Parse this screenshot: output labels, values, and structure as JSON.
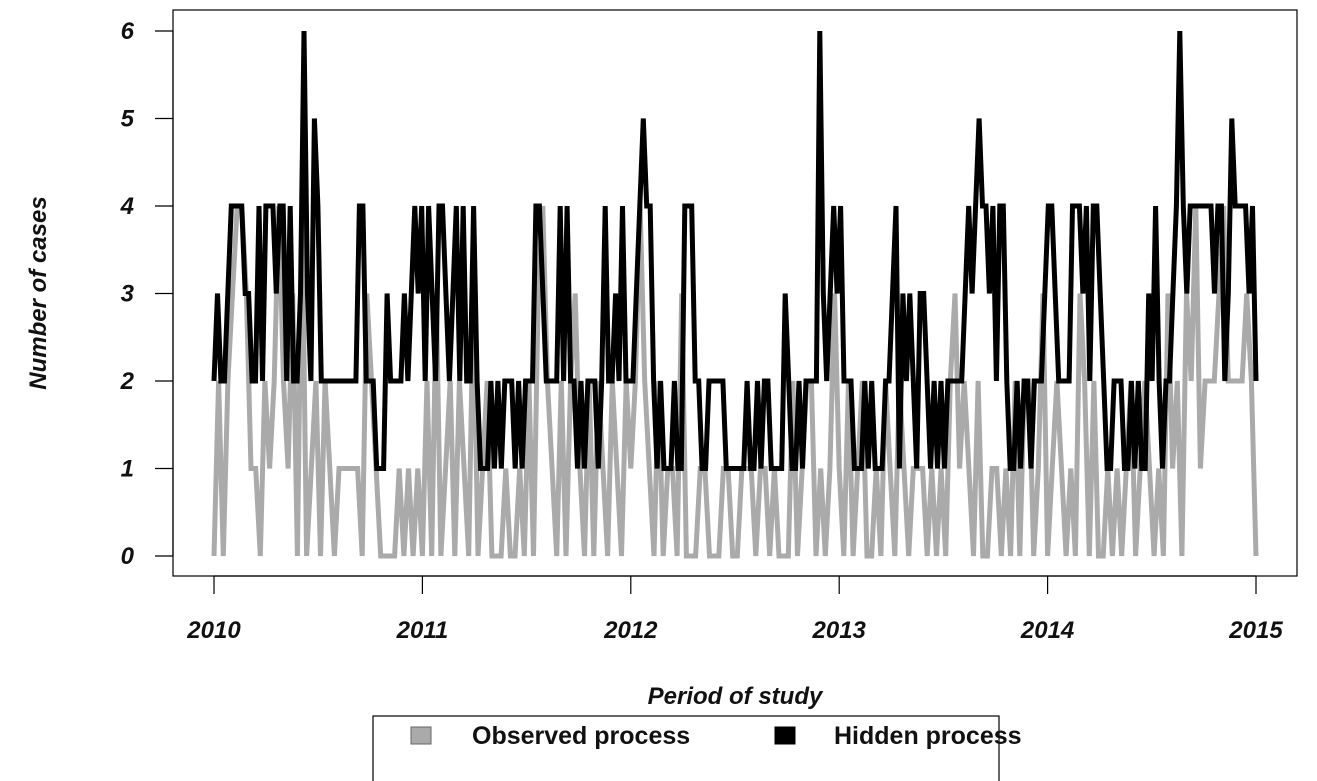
{
  "chart_data": {
    "type": "line",
    "title": "",
    "xlabel": "Period of study",
    "ylabel": "Number of cases",
    "xlim": [
      2010,
      2015
    ],
    "ylim": [
      0,
      6
    ],
    "x_ticks": [
      "2010",
      "2011",
      "2012",
      "2013",
      "2014",
      "2015"
    ],
    "y_ticks": [
      "0",
      "1",
      "2",
      "3",
      "4",
      "5",
      "6"
    ],
    "grid": false,
    "legend_placement": "bottom",
    "x_start": 2010,
    "x_step": 0.01923,
    "series": [
      {
        "name": "Observed process",
        "color": "#aaaaaa",
        "values": [
          0,
          2,
          0,
          2,
          3,
          4,
          4,
          3,
          1,
          1,
          0,
          2,
          1,
          2,
          4,
          2,
          1,
          3,
          0,
          4,
          0,
          1,
          2,
          0,
          2,
          1,
          0,
          1,
          1,
          1,
          1,
          1,
          0,
          3,
          2,
          1,
          0,
          0,
          0,
          0,
          1,
          0,
          1,
          0,
          1,
          0,
          2,
          0,
          3,
          0,
          1,
          2,
          0,
          2,
          1,
          0,
          3,
          0,
          1,
          2,
          0,
          0,
          0,
          1,
          0,
          0,
          1,
          0,
          2,
          0,
          3,
          4,
          2,
          1,
          0,
          2,
          0,
          2,
          3,
          1,
          0,
          2,
          0,
          2,
          1,
          0,
          2,
          1,
          0,
          2,
          1,
          2,
          4,
          2,
          1,
          0,
          2,
          0,
          1,
          1,
          0,
          3,
          0,
          0,
          0,
          1,
          1,
          0,
          0,
          0,
          1,
          1,
          0,
          0,
          1,
          1,
          1,
          0,
          1,
          1,
          0,
          1,
          0,
          0,
          0,
          2,
          0,
          1,
          2,
          2,
          0,
          1,
          0,
          1,
          3,
          1,
          0,
          2,
          0,
          1,
          2,
          0,
          0,
          1,
          0,
          2,
          1,
          0,
          2,
          1,
          0,
          1,
          1,
          1,
          0,
          1,
          0,
          1,
          0,
          2,
          3,
          1,
          2,
          1,
          0,
          2,
          0,
          0,
          1,
          1,
          0,
          1,
          0,
          2,
          0,
          2,
          2,
          0,
          1,
          3,
          0,
          1,
          2,
          1,
          0,
          1,
          0,
          3,
          2,
          0,
          2,
          0,
          0,
          1,
          0,
          1,
          0,
          1,
          2,
          0,
          1,
          2,
          1,
          0,
          1,
          0,
          3,
          1,
          2,
          0,
          3,
          2,
          4,
          1,
          2,
          2,
          2,
          3,
          4,
          2,
          2,
          2,
          2,
          3,
          2,
          0
        ],
        "line_width": 5
      },
      {
        "name": "Hidden process",
        "color": "#000000",
        "values": [
          2,
          3,
          2,
          2,
          3,
          4,
          4,
          4,
          4,
          3,
          3,
          2,
          2,
          4,
          2,
          4,
          4,
          4,
          3,
          4,
          4,
          2,
          4,
          2,
          2,
          3,
          6,
          3,
          2,
          5,
          4,
          2,
          2,
          2,
          2,
          2,
          2,
          2,
          2,
          2,
          2,
          2,
          4,
          4,
          2,
          2,
          2,
          1,
          1,
          1,
          3,
          2,
          2,
          2,
          2,
          3,
          2,
          3,
          4,
          3,
          4,
          2,
          4,
          3,
          2,
          4,
          4,
          3,
          2,
          3,
          4,
          2,
          4,
          2,
          2,
          4,
          2,
          1,
          1,
          1,
          2,
          1,
          2,
          1,
          2,
          2,
          2,
          1,
          2,
          1,
          2,
          2,
          2,
          4,
          4,
          3,
          2,
          2,
          2,
          2,
          4,
          2,
          4,
          2,
          2,
          1,
          2,
          1,
          2,
          2,
          2,
          1,
          2,
          4,
          2,
          2,
          3,
          2,
          4,
          2,
          2,
          2,
          3,
          4,
          5,
          4,
          4,
          2,
          1,
          2,
          1,
          1,
          1,
          2,
          1,
          1,
          4,
          4,
          4,
          2,
          2,
          1,
          1,
          2,
          2,
          2,
          2,
          2,
          1,
          1,
          1,
          1,
          1,
          1,
          2,
          1,
          1,
          2,
          1,
          2,
          2,
          1,
          1,
          1,
          1,
          3,
          2,
          1,
          1,
          2,
          1,
          2,
          2,
          2,
          2,
          6,
          3,
          2,
          3,
          4,
          3,
          4,
          2,
          2,
          2,
          1,
          1,
          1,
          2,
          1,
          2,
          1,
          1,
          1,
          2,
          2,
          3,
          4,
          1,
          3,
          2,
          3,
          2,
          1,
          3,
          3,
          2,
          1,
          2,
          1,
          2,
          1,
          2,
          2,
          2,
          2,
          2,
          3,
          4,
          3,
          4,
          5,
          4,
          4,
          3,
          4,
          2,
          4,
          4,
          2,
          1,
          1,
          2,
          1,
          2,
          2,
          1,
          2,
          2,
          2,
          3,
          4,
          4,
          3,
          2,
          2,
          2,
          2,
          4,
          4,
          4,
          3,
          4,
          2,
          4,
          4,
          3,
          2,
          1,
          1,
          2,
          2,
          2,
          1,
          1,
          2,
          1,
          2,
          1,
          1,
          3,
          2,
          4,
          2,
          1,
          2,
          2,
          3,
          4,
          6,
          4,
          3,
          4,
          4,
          4,
          4,
          4,
          4,
          4,
          3,
          4,
          4,
          2,
          3,
          5,
          4,
          4,
          4,
          4,
          3,
          4,
          2
        ],
        "line_width": 5
      }
    ]
  }
}
